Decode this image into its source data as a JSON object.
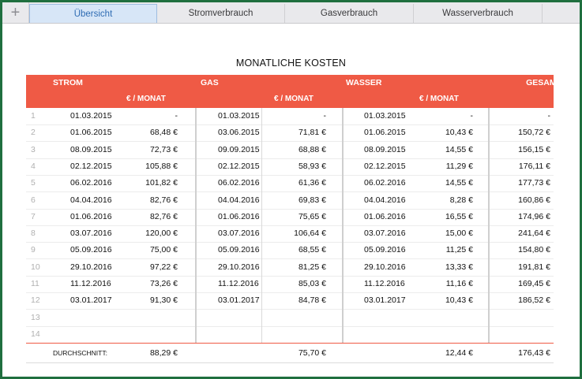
{
  "tabs": [
    {
      "label": "Übersicht",
      "active": true
    },
    {
      "label": "Stromverbrauch",
      "active": false
    },
    {
      "label": "Gasverbrauch",
      "active": false
    },
    {
      "label": "Wasserverbrauch",
      "active": false
    }
  ],
  "add_tab_icon": "plus-icon",
  "table_title": "MONATLICHE KOSTEN",
  "headers": {
    "strom": "STROM",
    "gas": "GAS",
    "wasser": "WASSER",
    "gesamt": "GESAMT"
  },
  "sub_headers": {
    "strom": "€ / MONAT",
    "gas": "€ / MONAT",
    "wasser": "€ / MONAT"
  },
  "rows": [
    {
      "n": "1",
      "sd": "01.03.2015",
      "sv": "-",
      "gd": "01.03.2015",
      "gv": "-",
      "wd": "01.03.2015",
      "wv": "-",
      "t": "-"
    },
    {
      "n": "2",
      "sd": "01.06.2015",
      "sv": "68,48 €",
      "gd": "03.06.2015",
      "gv": "71,81 €",
      "wd": "01.06.2015",
      "wv": "10,43 €",
      "t": "150,72 €"
    },
    {
      "n": "3",
      "sd": "08.09.2015",
      "sv": "72,73 €",
      "gd": "09.09.2015",
      "gv": "68,88 €",
      "wd": "08.09.2015",
      "wv": "14,55 €",
      "t": "156,15 €"
    },
    {
      "n": "4",
      "sd": "02.12.2015",
      "sv": "105,88 €",
      "gd": "02.12.2015",
      "gv": "58,93 €",
      "wd": "02.12.2015",
      "wv": "11,29 €",
      "t": "176,11 €"
    },
    {
      "n": "5",
      "sd": "06.02.2016",
      "sv": "101,82 €",
      "gd": "06.02.2016",
      "gv": "61,36 €",
      "wd": "06.02.2016",
      "wv": "14,55 €",
      "t": "177,73 €"
    },
    {
      "n": "6",
      "sd": "04.04.2016",
      "sv": "82,76 €",
      "gd": "04.04.2016",
      "gv": "69,83 €",
      "wd": "04.04.2016",
      "wv": "8,28 €",
      "t": "160,86 €"
    },
    {
      "n": "7",
      "sd": "01.06.2016",
      "sv": "82,76 €",
      "gd": "01.06.2016",
      "gv": "75,65 €",
      "wd": "01.06.2016",
      "wv": "16,55 €",
      "t": "174,96 €"
    },
    {
      "n": "8",
      "sd": "03.07.2016",
      "sv": "120,00 €",
      "gd": "03.07.2016",
      "gv": "106,64 €",
      "wd": "03.07.2016",
      "wv": "15,00 €",
      "t": "241,64 €"
    },
    {
      "n": "9",
      "sd": "05.09.2016",
      "sv": "75,00 €",
      "gd": "05.09.2016",
      "gv": "68,55 €",
      "wd": "05.09.2016",
      "wv": "11,25 €",
      "t": "154,80 €"
    },
    {
      "n": "10",
      "sd": "29.10.2016",
      "sv": "97,22 €",
      "gd": "29.10.2016",
      "gv": "81,25 €",
      "wd": "29.10.2016",
      "wv": "13,33 €",
      "t": "191,81 €"
    },
    {
      "n": "11",
      "sd": "11.12.2016",
      "sv": "73,26 €",
      "gd": "11.12.2016",
      "gv": "85,03 €",
      "wd": "11.12.2016",
      "wv": "11,16 €",
      "t": "169,45 €"
    },
    {
      "n": "12",
      "sd": "03.01.2017",
      "sv": "91,30 €",
      "gd": "03.01.2017",
      "gv": "84,78 €",
      "wd": "03.01.2017",
      "wv": "10,43 €",
      "t": "186,52 €"
    },
    {
      "n": "13",
      "sd": "",
      "sv": "",
      "gd": "",
      "gv": "",
      "wd": "",
      "wv": "",
      "t": ""
    },
    {
      "n": "14",
      "sd": "",
      "sv": "",
      "gd": "",
      "gv": "",
      "wd": "",
      "wv": "",
      "t": ""
    }
  ],
  "footer": {
    "label": "DURCHSCHNITT:",
    "strom": "88,29 €",
    "gas": "75,70 €",
    "wasser": "12,44 €",
    "gesamt": "176,43 €"
  },
  "colors": {
    "header_bg": "#ef5a45",
    "active_tab": "#d7e6f7",
    "frame": "#1f6f3f"
  }
}
